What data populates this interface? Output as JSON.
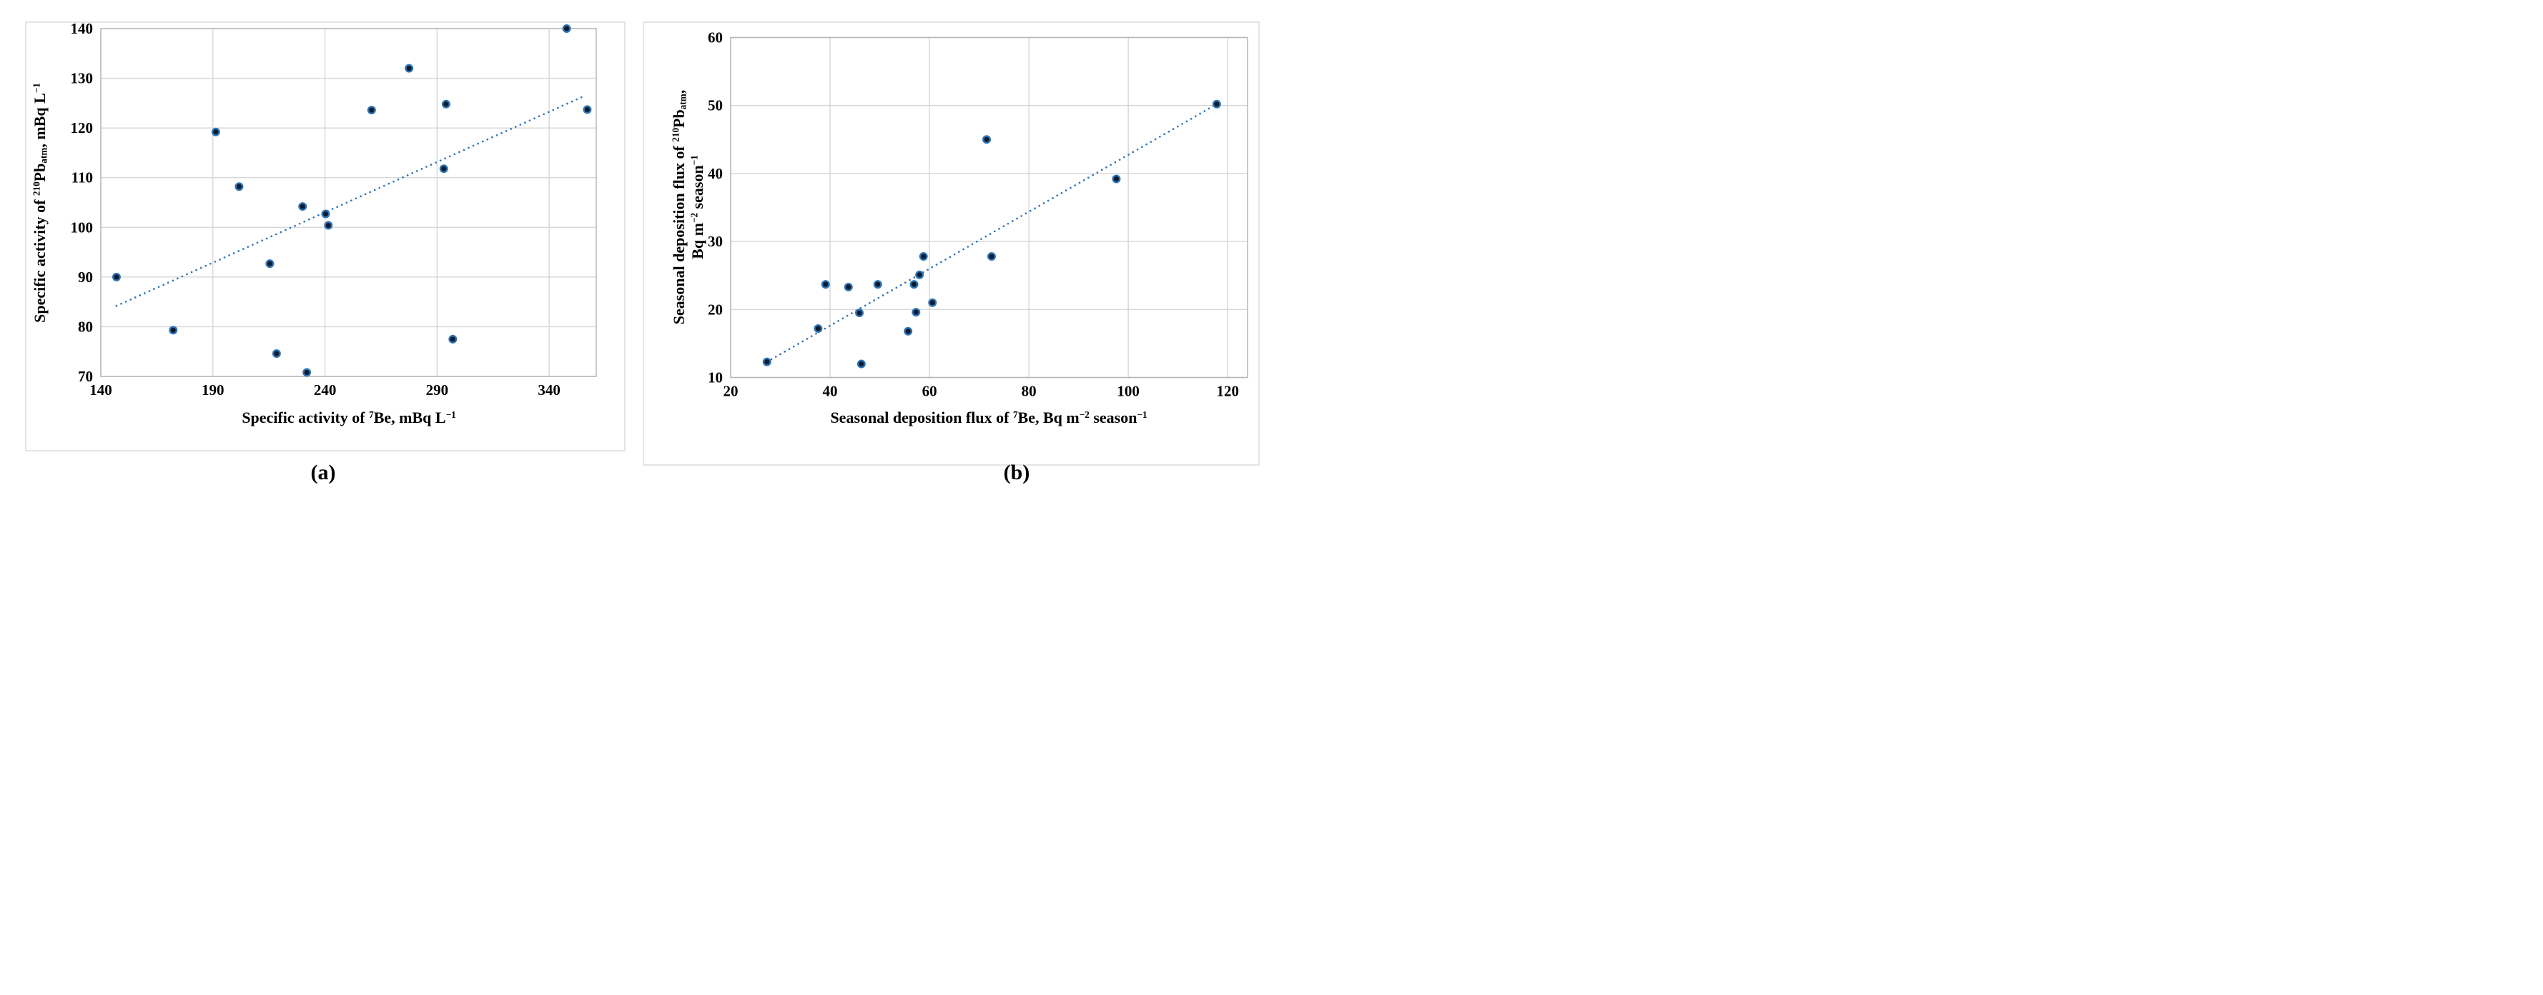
{
  "figure": {
    "background": "#ffffff",
    "panel_border": "#e4e4e4"
  },
  "colors": {
    "marker_fill": "#0e1b2e",
    "marker_stroke": "#2e74b5",
    "trendline": "#2e74b5",
    "gridline": "#d6d6d6",
    "frame": "#b7b7b7",
    "text": "#000000"
  },
  "captions": {
    "a": "(a)",
    "b": "(b)"
  },
  "chart_data": [
    {
      "id": "a",
      "type": "scatter",
      "title": "",
      "xlabel": "Specific activity of ⁷Be, mBq L⁻¹",
      "ylabel": "Specific activity of ²¹⁰Pbatm, mBq L⁻¹",
      "xlabel_parts": [
        {
          "t": "Specific activity of "
        },
        {
          "t": "7",
          "s": "sup"
        },
        {
          "t": "Be, mBq L"
        },
        {
          "t": "−1",
          "s": "sup"
        }
      ],
      "ylabel_lines": [
        [
          {
            "t": "Specific activity of "
          },
          {
            "t": "210",
            "s": "sup"
          },
          {
            "t": "Pb"
          },
          {
            "t": "atm",
            "s": "sub"
          },
          {
            "t": ", mBq L"
          },
          {
            "t": "−1",
            "s": "sup"
          }
        ]
      ],
      "xlim": [
        140,
        361
      ],
      "ylim": [
        70,
        140
      ],
      "xticks": [
        140,
        190,
        240,
        290,
        340
      ],
      "yticks": [
        70,
        80,
        90,
        100,
        110,
        120,
        130,
        140
      ],
      "grid": true,
      "legend": false,
      "points": [
        [
          147,
          90.0
        ],
        [
          172.3,
          79.3
        ],
        [
          191.3,
          119.2
        ],
        [
          201.7,
          108.2
        ],
        [
          215.4,
          92.7
        ],
        [
          218.4,
          74.6
        ],
        [
          230,
          104.2
        ],
        [
          231.9,
          70.8
        ],
        [
          240.3,
          102.7
        ],
        [
          241.5,
          100.4
        ],
        [
          260.8,
          123.6
        ],
        [
          277.5,
          132.0
        ],
        [
          294,
          124.8
        ],
        [
          293,
          111.8
        ],
        [
          297,
          77.5
        ],
        [
          347.8,
          140.0
        ],
        [
          357,
          123.7
        ]
      ],
      "trendline": {
        "style": "dotted",
        "x1": 147,
        "y1": 84.2,
        "x2": 356,
        "y2": 126.5
      }
    },
    {
      "id": "b",
      "type": "scatter",
      "title": "",
      "xlabel": "Seasonal deposition flux of ⁷Be, Bq m⁻² season⁻¹",
      "ylabel": "Seasonal deposition flux of ²¹⁰Pbatm, Bq m⁻² season⁻¹",
      "xlabel_parts": [
        {
          "t": "Seasonal deposition flux of "
        },
        {
          "t": "7",
          "s": "sup"
        },
        {
          "t": "Be, Bq m"
        },
        {
          "t": "−2",
          "s": "sup"
        },
        {
          "t": " season"
        },
        {
          "t": "−1",
          "s": "sup"
        }
      ],
      "ylabel_lines": [
        [
          {
            "t": "Seasonal deposition flux of "
          },
          {
            "t": "210",
            "s": "sup"
          },
          {
            "t": "Pb"
          },
          {
            "t": "atm",
            "s": "sub"
          },
          {
            "t": ","
          }
        ],
        [
          {
            "t": "Bq m"
          },
          {
            "t": "−2",
            "s": "sup"
          },
          {
            "t": " season"
          },
          {
            "t": "−1",
            "s": "sup"
          }
        ]
      ],
      "xlim": [
        20,
        124
      ],
      "ylim": [
        10,
        60
      ],
      "xticks": [
        20,
        40,
        60,
        80,
        100,
        120
      ],
      "yticks": [
        10,
        20,
        30,
        40,
        50,
        60
      ],
      "grid": true,
      "legend": false,
      "points": [
        [
          27.3,
          12.3
        ],
        [
          37.6,
          17.2
        ],
        [
          39.1,
          23.7
        ],
        [
          43.7,
          23.3
        ],
        [
          45.9,
          19.5
        ],
        [
          46.3,
          12.0
        ],
        [
          49.6,
          23.7
        ],
        [
          55.7,
          16.8
        ],
        [
          56.9,
          23.7
        ],
        [
          58.0,
          25.1
        ],
        [
          58.8,
          27.8
        ],
        [
          57.3,
          19.6
        ],
        [
          60.6,
          21.0
        ],
        [
          71.5,
          45.0
        ],
        [
          72.5,
          27.8
        ],
        [
          97.6,
          39.2
        ],
        [
          117.8,
          50.2
        ]
      ],
      "trendline": {
        "style": "dotted",
        "x1": 27.3,
        "y1": 12.3,
        "x2": 117.8,
        "y2": 50.2
      }
    }
  ]
}
